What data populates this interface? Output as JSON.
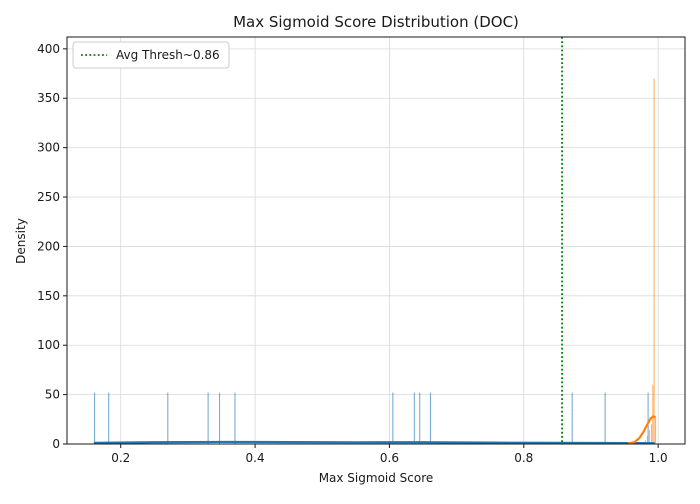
{
  "chart_data": {
    "type": "histogram",
    "title": "Max Sigmoid Score Distribution (DOC)",
    "xlabel": "Max Sigmoid Score",
    "ylabel": "Density",
    "xlim": [
      0.12,
      1.04
    ],
    "ylim": [
      0,
      412
    ],
    "x_ticks": [
      0.2,
      0.4,
      0.6,
      0.8,
      1.0
    ],
    "x_tick_labels": [
      "0.2",
      "0.4",
      "0.6",
      "0.8",
      "1.0"
    ],
    "y_ticks": [
      0,
      50,
      100,
      150,
      200,
      250,
      300,
      350,
      400
    ],
    "y_tick_labels": [
      "0",
      "50",
      "100",
      "150",
      "200",
      "250",
      "300",
      "350",
      "400"
    ],
    "grid": true,
    "legend": {
      "placement": "top-left",
      "entries": [
        {
          "label": "Avg Thresh~0.86",
          "style": "dotted-line",
          "color": "#008000"
        }
      ]
    },
    "annotations": [
      {
        "type": "vline",
        "x": 0.857,
        "label": "Avg Thresh~0.86",
        "color": "#008000",
        "style": "dotted"
      }
    ],
    "series": [
      {
        "color": "#1f77b4",
        "histogram_bars": [
          {
            "x": 0.161,
            "density": 52
          },
          {
            "x": 0.182,
            "density": 52
          },
          {
            "x": 0.27,
            "density": 52
          },
          {
            "x": 0.33,
            "density": 52
          },
          {
            "x": 0.347,
            "density": 52
          },
          {
            "x": 0.37,
            "density": 52
          },
          {
            "x": 0.605,
            "density": 52
          },
          {
            "x": 0.637,
            "density": 52
          },
          {
            "x": 0.645,
            "density": 52
          },
          {
            "x": 0.661,
            "density": 52
          },
          {
            "x": 0.872,
            "density": 52
          },
          {
            "x": 0.921,
            "density": 52
          },
          {
            "x": 0.985,
            "density": 52
          }
        ],
        "kde": [
          [
            0.16,
            1.2
          ],
          [
            0.25,
            1.8
          ],
          [
            0.35,
            2.1
          ],
          [
            0.45,
            1.9
          ],
          [
            0.55,
            1.7
          ],
          [
            0.65,
            1.8
          ],
          [
            0.75,
            1.4
          ],
          [
            0.85,
            1.1
          ],
          [
            0.92,
            1.0
          ],
          [
            0.96,
            0.9
          ],
          [
            0.995,
            0.8
          ]
        ]
      },
      {
        "color": "#ff7f0e",
        "histogram_bars": [
          {
            "x": 0.981,
            "density": 4
          },
          {
            "x": 0.984,
            "density": 8
          },
          {
            "x": 0.987,
            "density": 14
          },
          {
            "x": 0.99,
            "density": 20
          },
          {
            "x": 0.992,
            "density": 60
          },
          {
            "x": 0.994,
            "density": 370
          },
          {
            "x": 0.996,
            "density": 28
          }
        ],
        "kde": [
          [
            0.955,
            0.5
          ],
          [
            0.965,
            2
          ],
          [
            0.972,
            6
          ],
          [
            0.978,
            12
          ],
          [
            0.984,
            20
          ],
          [
            0.989,
            26
          ],
          [
            0.993,
            28
          ],
          [
            0.996,
            27
          ]
        ]
      }
    ]
  }
}
